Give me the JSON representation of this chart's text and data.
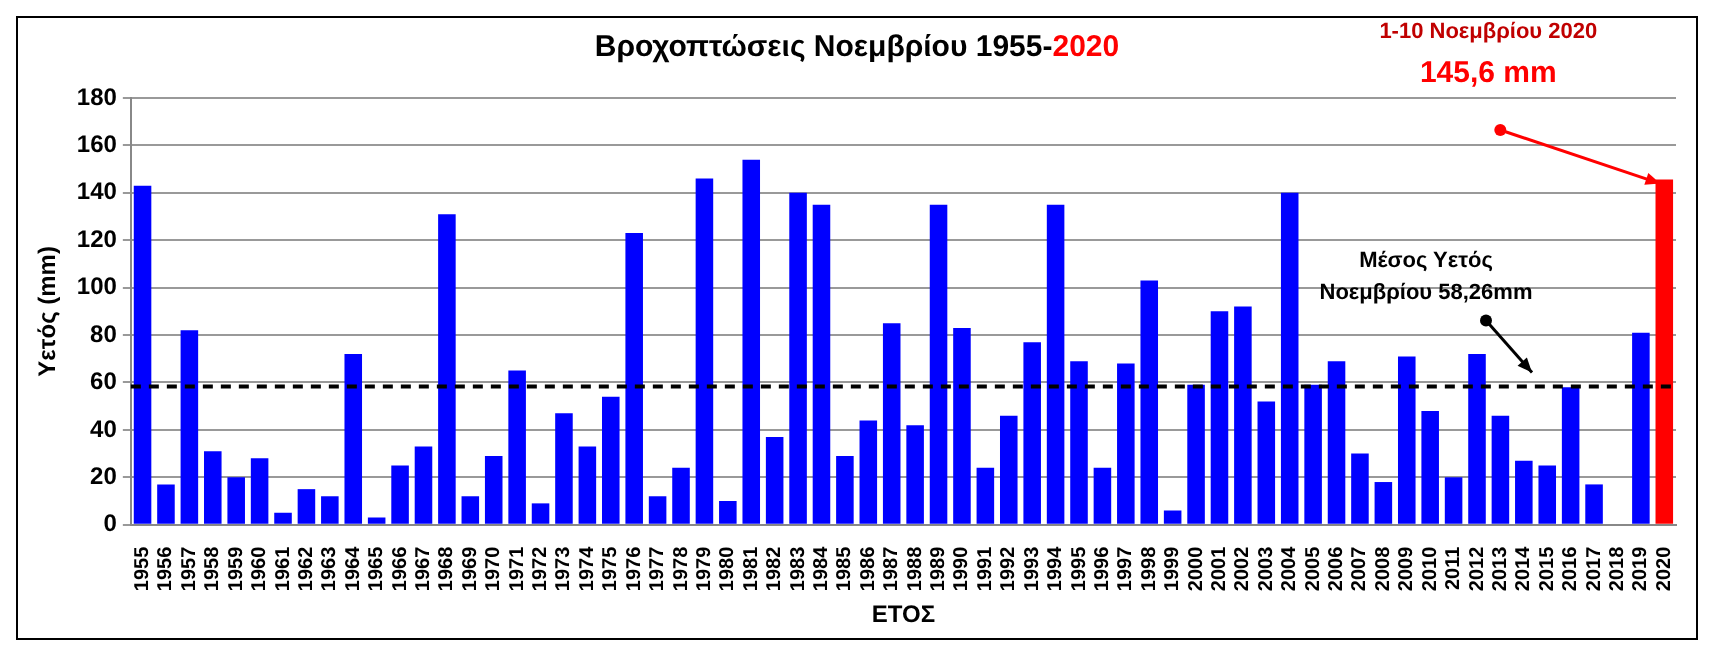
{
  "chart_data": {
    "type": "bar",
    "title": "Βροχοπτώσεις Νοεμβρίου 1955-2020",
    "xlabel": "ΕΤΟΣ",
    "ylabel": "Υετός (mm)",
    "categories": [
      "1955",
      "1956",
      "1957",
      "1958",
      "1959",
      "1960",
      "1961",
      "1962",
      "1963",
      "1964",
      "1965",
      "1966",
      "1967",
      "1968",
      "1969",
      "1970",
      "1971",
      "1972",
      "1973",
      "1974",
      "1975",
      "1976",
      "1977",
      "1978",
      "1979",
      "1980",
      "1981",
      "1982",
      "1983",
      "1984",
      "1985",
      "1986",
      "1987",
      "1988",
      "1989",
      "1990",
      "1991",
      "1992",
      "1993",
      "1994",
      "1995",
      "1996",
      "1997",
      "1998",
      "1999",
      "2000",
      "2001",
      "2002",
      "2003",
      "2004",
      "2005",
      "2006",
      "2007",
      "2008",
      "2009",
      "2010",
      "2011",
      "2012",
      "2013",
      "2014",
      "2015",
      "2016",
      "2017",
      "2018",
      "2019",
      "2020"
    ],
    "values": [
      143,
      17,
      82,
      31,
      20,
      28,
      5,
      15,
      12,
      72,
      3,
      25,
      33,
      131,
      12,
      29,
      65,
      9,
      47,
      33,
      54,
      123,
      12,
      24,
      146,
      10,
      154,
      37,
      140,
      135,
      29,
      44,
      85,
      42,
      135,
      83,
      24,
      46,
      77,
      135,
      69,
      24,
      68,
      103,
      6,
      59,
      90,
      92,
      52,
      140,
      59,
      69,
      30,
      18,
      71,
      48,
      20,
      72,
      46,
      27,
      25,
      58,
      17,
      null,
      81,
      145.6
    ],
    "colors": [
      "#0000ff",
      "#0000ff",
      "#0000ff",
      "#0000ff",
      "#0000ff",
      "#0000ff",
      "#0000ff",
      "#0000ff",
      "#0000ff",
      "#0000ff",
      "#0000ff",
      "#0000ff",
      "#0000ff",
      "#0000ff",
      "#0000ff",
      "#0000ff",
      "#0000ff",
      "#0000ff",
      "#0000ff",
      "#0000ff",
      "#0000ff",
      "#0000ff",
      "#0000ff",
      "#0000ff",
      "#0000ff",
      "#0000ff",
      "#0000ff",
      "#0000ff",
      "#0000ff",
      "#0000ff",
      "#0000ff",
      "#0000ff",
      "#0000ff",
      "#0000ff",
      "#0000ff",
      "#0000ff",
      "#0000ff",
      "#0000ff",
      "#0000ff",
      "#0000ff",
      "#0000ff",
      "#0000ff",
      "#0000ff",
      "#0000ff",
      "#0000ff",
      "#0000ff",
      "#0000ff",
      "#0000ff",
      "#0000ff",
      "#0000ff",
      "#0000ff",
      "#0000ff",
      "#0000ff",
      "#0000ff",
      "#0000ff",
      "#0000ff",
      "#0000ff",
      "#0000ff",
      "#0000ff",
      "#0000ff",
      "#0000ff",
      "#0000ff",
      "#0000ff",
      "#0000ff",
      "#0000ff",
      "#ff0000"
    ],
    "ylim": [
      0,
      180
    ],
    "yticks": [
      0,
      20,
      40,
      60,
      80,
      100,
      120,
      140,
      160,
      180
    ],
    "grid": "y",
    "legend": false,
    "ref_lines": [
      {
        "axis": "y",
        "value": 58.26,
        "label": "Μέσος Υετός Νοεμβρίου 58,26mm",
        "color": "#000000",
        "line_style": "dashed"
      }
    ],
    "annotations": [
      "1-10 Νοεμβρίου 2020",
      "145,6 mm"
    ]
  }
}
